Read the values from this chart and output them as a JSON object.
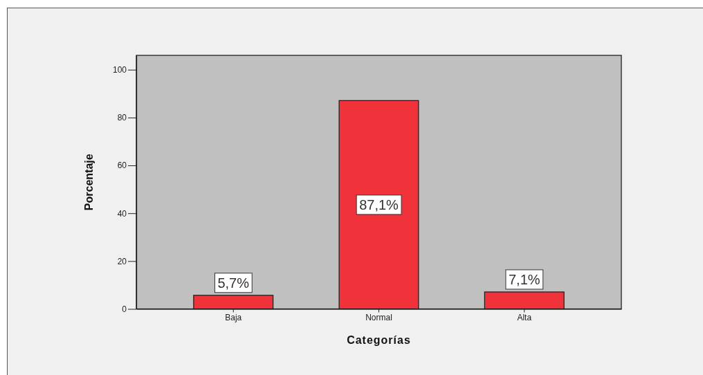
{
  "chart_data": {
    "type": "bar",
    "xlabel": "Categorías",
    "ylabel": "Porcentaje",
    "categories": [
      "Baja",
      "Normal",
      "Alta"
    ],
    "values": [
      5.7,
      87.1,
      7.1
    ],
    "color": "#f0323a",
    "value_labels": [
      "5,7%",
      "87,1%",
      "7,1%"
    ],
    "ylim": [
      0,
      106
    ],
    "yticks": [
      0,
      20,
      40,
      60,
      80,
      100
    ]
  }
}
